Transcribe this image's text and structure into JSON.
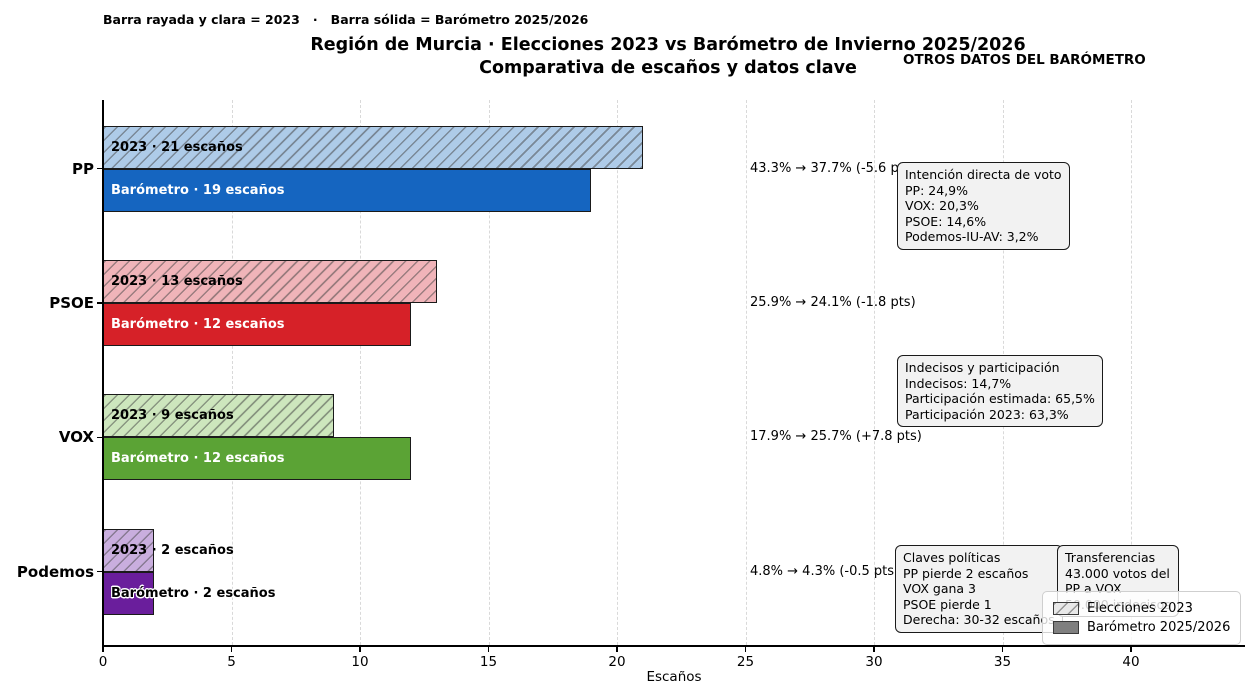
{
  "note": "Barra rayada y clara = 2023   ·   Barra sólida = Barómetro 2025/2026",
  "title": "Región de Murcia · Elecciones 2023 vs Barómetro de Invierno 2025/2026",
  "subtitle": "Comparativa de escaños y datos clave",
  "others_heading": "OTROS DATOS DEL BARÓMETRO",
  "xlabel": "Escaños",
  "chart_data": {
    "type": "bar",
    "orientation": "horizontal",
    "title": "Región de Murcia · Elecciones 2023 vs Barómetro de Invierno 2025/2026",
    "subtitle": "Comparativa de escaños y datos clave",
    "xlabel": "Escaños",
    "xlim": [
      0,
      44
    ],
    "xticks": [
      0,
      5,
      10,
      15,
      20,
      25,
      30,
      35,
      40
    ],
    "grid": "vertical-dashed",
    "legend_position": "lower-right",
    "categories": [
      "PP",
      "PSOE",
      "VOX",
      "Podemos"
    ],
    "series": [
      {
        "name": "Elecciones 2023",
        "style": "hatched-light",
        "values": [
          21,
          13,
          9,
          2
        ]
      },
      {
        "name": "Barómetro 2025/2026",
        "style": "solid",
        "values": [
          19,
          12,
          12,
          2
        ]
      }
    ],
    "bars": [
      {
        "party": "PP",
        "seats_2023": 21,
        "seats_baro": 19,
        "label_2023": "2023 · 21 escaños",
        "label_baro": "Barómetro · 19 escaños",
        "annotation": "43.3% → 37.7% (-5.6 pts)",
        "color_light": "#aecbe8",
        "color_solid": "#1565c0",
        "baro_label_color": "#ffffff"
      },
      {
        "party": "PSOE",
        "seats_2023": 13,
        "seats_baro": 12,
        "label_2023": "2023 · 13 escaños",
        "label_baro": "Barómetro · 12 escaños",
        "annotation": "25.9% → 24.1% (-1.8 pts)",
        "color_light": "#f0b4b9",
        "color_solid": "#d62128",
        "baro_label_color": "#ffffff"
      },
      {
        "party": "VOX",
        "seats_2023": 9,
        "seats_baro": 12,
        "label_2023": "2023 · 9 escaños",
        "label_baro": "Barómetro · 12 escaños",
        "annotation": "17.9% → 25.7% (+7.8 pts)",
        "color_light": "#cde6bd",
        "color_solid": "#5ba335",
        "baro_label_color": "#ffffff"
      },
      {
        "party": "Podemos",
        "seats_2023": 2,
        "seats_baro": 2,
        "label_2023": "2023 · 2 escaños",
        "label_baro": "Barómetro · 2 escaños",
        "annotation": "4.8% → 4.3% (-0.5 pts)",
        "color_light": "#c9aede",
        "color_solid": "#6a1e9c",
        "baro_label_color": "#000000"
      }
    ]
  },
  "info_boxes": [
    {
      "title": "Intención directa de voto",
      "lines": [
        "PP: 24,9%",
        "VOX: 20,3%",
        "PSOE: 14,6%",
        "Podemos-IU-AV: 3,2%"
      ]
    },
    {
      "title": "Indecisos y participación",
      "lines": [
        "Indecisos: 14,7%",
        "Participación estimada: 65,5%",
        "Participación 2023: 63,3%"
      ]
    },
    {
      "title": "Claves políticas",
      "lines": [
        "PP pierde 2 escaños",
        "VOX gana 3",
        "PSOE pierde 1",
        "Derecha: 30-32 escaños"
      ]
    },
    {
      "title": "Transferencias",
      "lines": [
        "43.000 votos del",
        "PP a VOX",
        "50.000 indecisos"
      ]
    }
  ],
  "legend": {
    "items": [
      {
        "label": "Elecciones 2023",
        "style": "hatched"
      },
      {
        "label": "Barómetro 2025/2026",
        "style": "solid"
      }
    ]
  }
}
